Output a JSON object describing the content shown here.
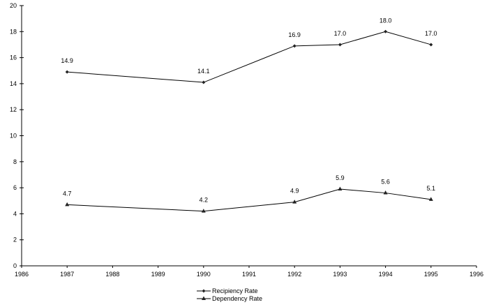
{
  "chart_data": {
    "type": "line",
    "title": "",
    "xlabel": "",
    "ylabel": "",
    "xlim": [
      1986,
      1996
    ],
    "ylim": [
      0,
      20
    ],
    "x_ticks": [
      1986,
      1987,
      1988,
      1989,
      1990,
      1991,
      1992,
      1993,
      1994,
      1995,
      1996
    ],
    "y_ticks": [
      0,
      2,
      4,
      6,
      8,
      10,
      12,
      14,
      16,
      18,
      20
    ],
    "grid": false,
    "legend_position": "bottom",
    "series": [
      {
        "name": "Recipiency Rate",
        "marker": "diamond",
        "x": [
          1987,
          1990,
          1992,
          1993,
          1994,
          1995
        ],
        "values": [
          14.9,
          14.1,
          16.9,
          17.0,
          18.0,
          17.0
        ],
        "labels": [
          "14.9",
          "14.1",
          "16.9",
          "17.0",
          "18.0",
          "17.0"
        ]
      },
      {
        "name": "Dependency Rate",
        "marker": "triangle",
        "x": [
          1987,
          1990,
          1992,
          1993,
          1994,
          1995
        ],
        "values": [
          4.7,
          4.2,
          4.9,
          5.9,
          5.6,
          5.1
        ],
        "labels": [
          "4.7",
          "4.2",
          "4.9",
          "5.9",
          "5.6",
          "5.1"
        ]
      }
    ]
  },
  "legend": {
    "items": [
      {
        "label": "Recipiency Rate",
        "icon": "diamond-line-icon"
      },
      {
        "label": "Dependency Rate",
        "icon": "triangle-line-icon"
      }
    ]
  },
  "colors": {
    "line": "#000000",
    "marker": "#222222",
    "background": "#ffffff"
  }
}
